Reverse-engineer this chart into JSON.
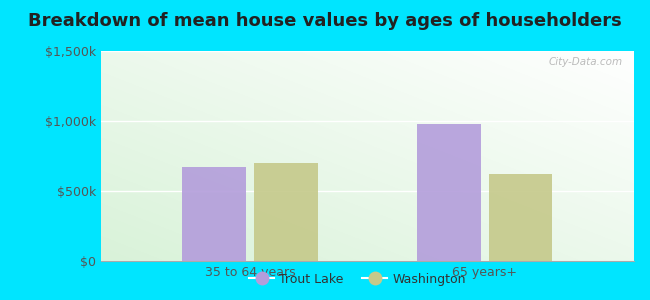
{
  "title": "Breakdown of mean house values by ages of householders",
  "categories": [
    "35 to 64 years",
    "65 years+"
  ],
  "series": [
    {
      "label": "Trout Lake",
      "values": [
        675000,
        975000
      ],
      "color": "#b39ddb"
    },
    {
      "label": "Washington",
      "values": [
        700000,
        625000
      ],
      "color": "#c5c98a"
    }
  ],
  "ylim": [
    0,
    1500000
  ],
  "yticks": [
    0,
    500000,
    1000000,
    1500000
  ],
  "ytick_labels": [
    "$0",
    "$500k",
    "$1,000k",
    "$1,500k"
  ],
  "background_outer": "#00e5ff",
  "bar_width": 0.12,
  "title_fontsize": 13,
  "tick_fontsize": 9,
  "legend_fontsize": 9,
  "watermark": "City-Data.com",
  "group_centers": [
    0.28,
    0.72
  ]
}
